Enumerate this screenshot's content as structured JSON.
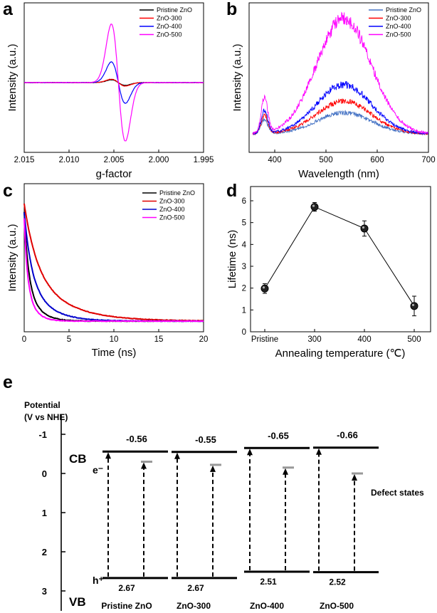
{
  "chart_data": [
    {
      "type": "line",
      "panel_label": "a",
      "xlabel": "g-factor",
      "ylabel": "Intensity (a.u.)",
      "xlim": [
        2.015,
        1.995
      ],
      "x_ticks": [
        "2.015",
        "2.010",
        "2.005",
        "2.000",
        "1.995"
      ],
      "legend_position": "top-right",
      "center_g": 2.0045,
      "series": [
        {
          "name": "Pristine ZnO",
          "color": "#000000",
          "amplitude": 0.04
        },
        {
          "name": "ZnO-300",
          "color": "#ff0000",
          "amplitude": 0.05
        },
        {
          "name": "ZnO-400",
          "color": "#0000ff",
          "amplitude": 0.3
        },
        {
          "name": "ZnO-500",
          "color": "#ff00ff",
          "amplitude": 0.85
        }
      ]
    },
    {
      "type": "line",
      "panel_label": "b",
      "xlabel": "Wavelength (nm)",
      "ylabel": "Intensity (a.u.)",
      "xlim": [
        350,
        700
      ],
      "x_ticks": [
        "400",
        "500",
        "600",
        "700"
      ],
      "legend_position": "top-right",
      "series": [
        {
          "name": "Pristine ZnO",
          "color": "#4472c4",
          "uv_peak": 0.12,
          "vis_peak": 0.18
        },
        {
          "name": "ZnO-300",
          "color": "#ff0000",
          "uv_peak": 0.16,
          "vis_peak": 0.28
        },
        {
          "name": "ZnO-400",
          "color": "#0000ff",
          "uv_peak": 0.2,
          "vis_peak": 0.42
        },
        {
          "name": "ZnO-500",
          "color": "#ff00ff",
          "uv_peak": 0.3,
          "vis_peak": 0.98
        }
      ]
    },
    {
      "type": "line",
      "panel_label": "c",
      "xlabel": "Time (ns)",
      "ylabel": "Intensity (a.u.)",
      "xlim": [
        0,
        20
      ],
      "x_ticks": [
        "0",
        "5",
        "10",
        "15",
        "20"
      ],
      "legend_position": "top-right",
      "series": [
        {
          "name": "Pristine ZnO",
          "color": "#000000",
          "start": 0.9,
          "tau": 1.2
        },
        {
          "name": "ZnO-300",
          "color": "#e00000",
          "start": 0.97,
          "tau": 4.0
        },
        {
          "name": "ZnO-400",
          "color": "#0000cc",
          "start": 0.9,
          "tau": 2.2
        },
        {
          "name": "ZnO-500",
          "color": "#ff00ff",
          "start": 0.85,
          "tau": 0.9
        }
      ]
    },
    {
      "type": "scatter",
      "panel_label": "d",
      "xlabel": "Annealing temperature (℃)",
      "ylabel": "Lifetime (ns)",
      "categories": [
        "Pristine",
        "300",
        "400",
        "500"
      ],
      "values": [
        1.98,
        5.72,
        4.73,
        1.18
      ],
      "errors": [
        0.22,
        0.2,
        0.35,
        0.45
      ],
      "ylim": [
        0,
        6
      ],
      "y_ticks": [
        "0",
        "1",
        "2",
        "3",
        "4",
        "5",
        "6"
      ]
    },
    {
      "type": "diagram",
      "panel_label": "e",
      "ylabel_line1": "Potential",
      "ylabel_line2": "(V vs NHE)",
      "ylim": [
        -1.5,
        3
      ],
      "y_ticks": [
        "-1",
        "0",
        "1",
        "2",
        "3"
      ],
      "cb_label": "CB",
      "vb_label": "VB",
      "electron_label": "e⁻",
      "hole_label": "h⁺",
      "defect_label": "Defect states",
      "samples": [
        {
          "name": "Pristine ZnO",
          "cb": -0.56,
          "vb": 2.67,
          "defect": -0.3,
          "cb_text": "-0.56",
          "vb_text": "2.67"
        },
        {
          "name": "ZnO-300",
          "cb": -0.55,
          "vb": 2.67,
          "defect": -0.22,
          "cb_text": "-0.55",
          "vb_text": "2.67"
        },
        {
          "name": "ZnO-400",
          "cb": -0.65,
          "vb": 2.51,
          "defect": -0.15,
          "cb_text": "-0.65",
          "vb_text": "2.51"
        },
        {
          "name": "ZnO-500",
          "cb": -0.66,
          "vb": 2.52,
          "defect": 0.0,
          "cb_text": "-0.66",
          "vb_text": "2.52"
        }
      ]
    }
  ]
}
